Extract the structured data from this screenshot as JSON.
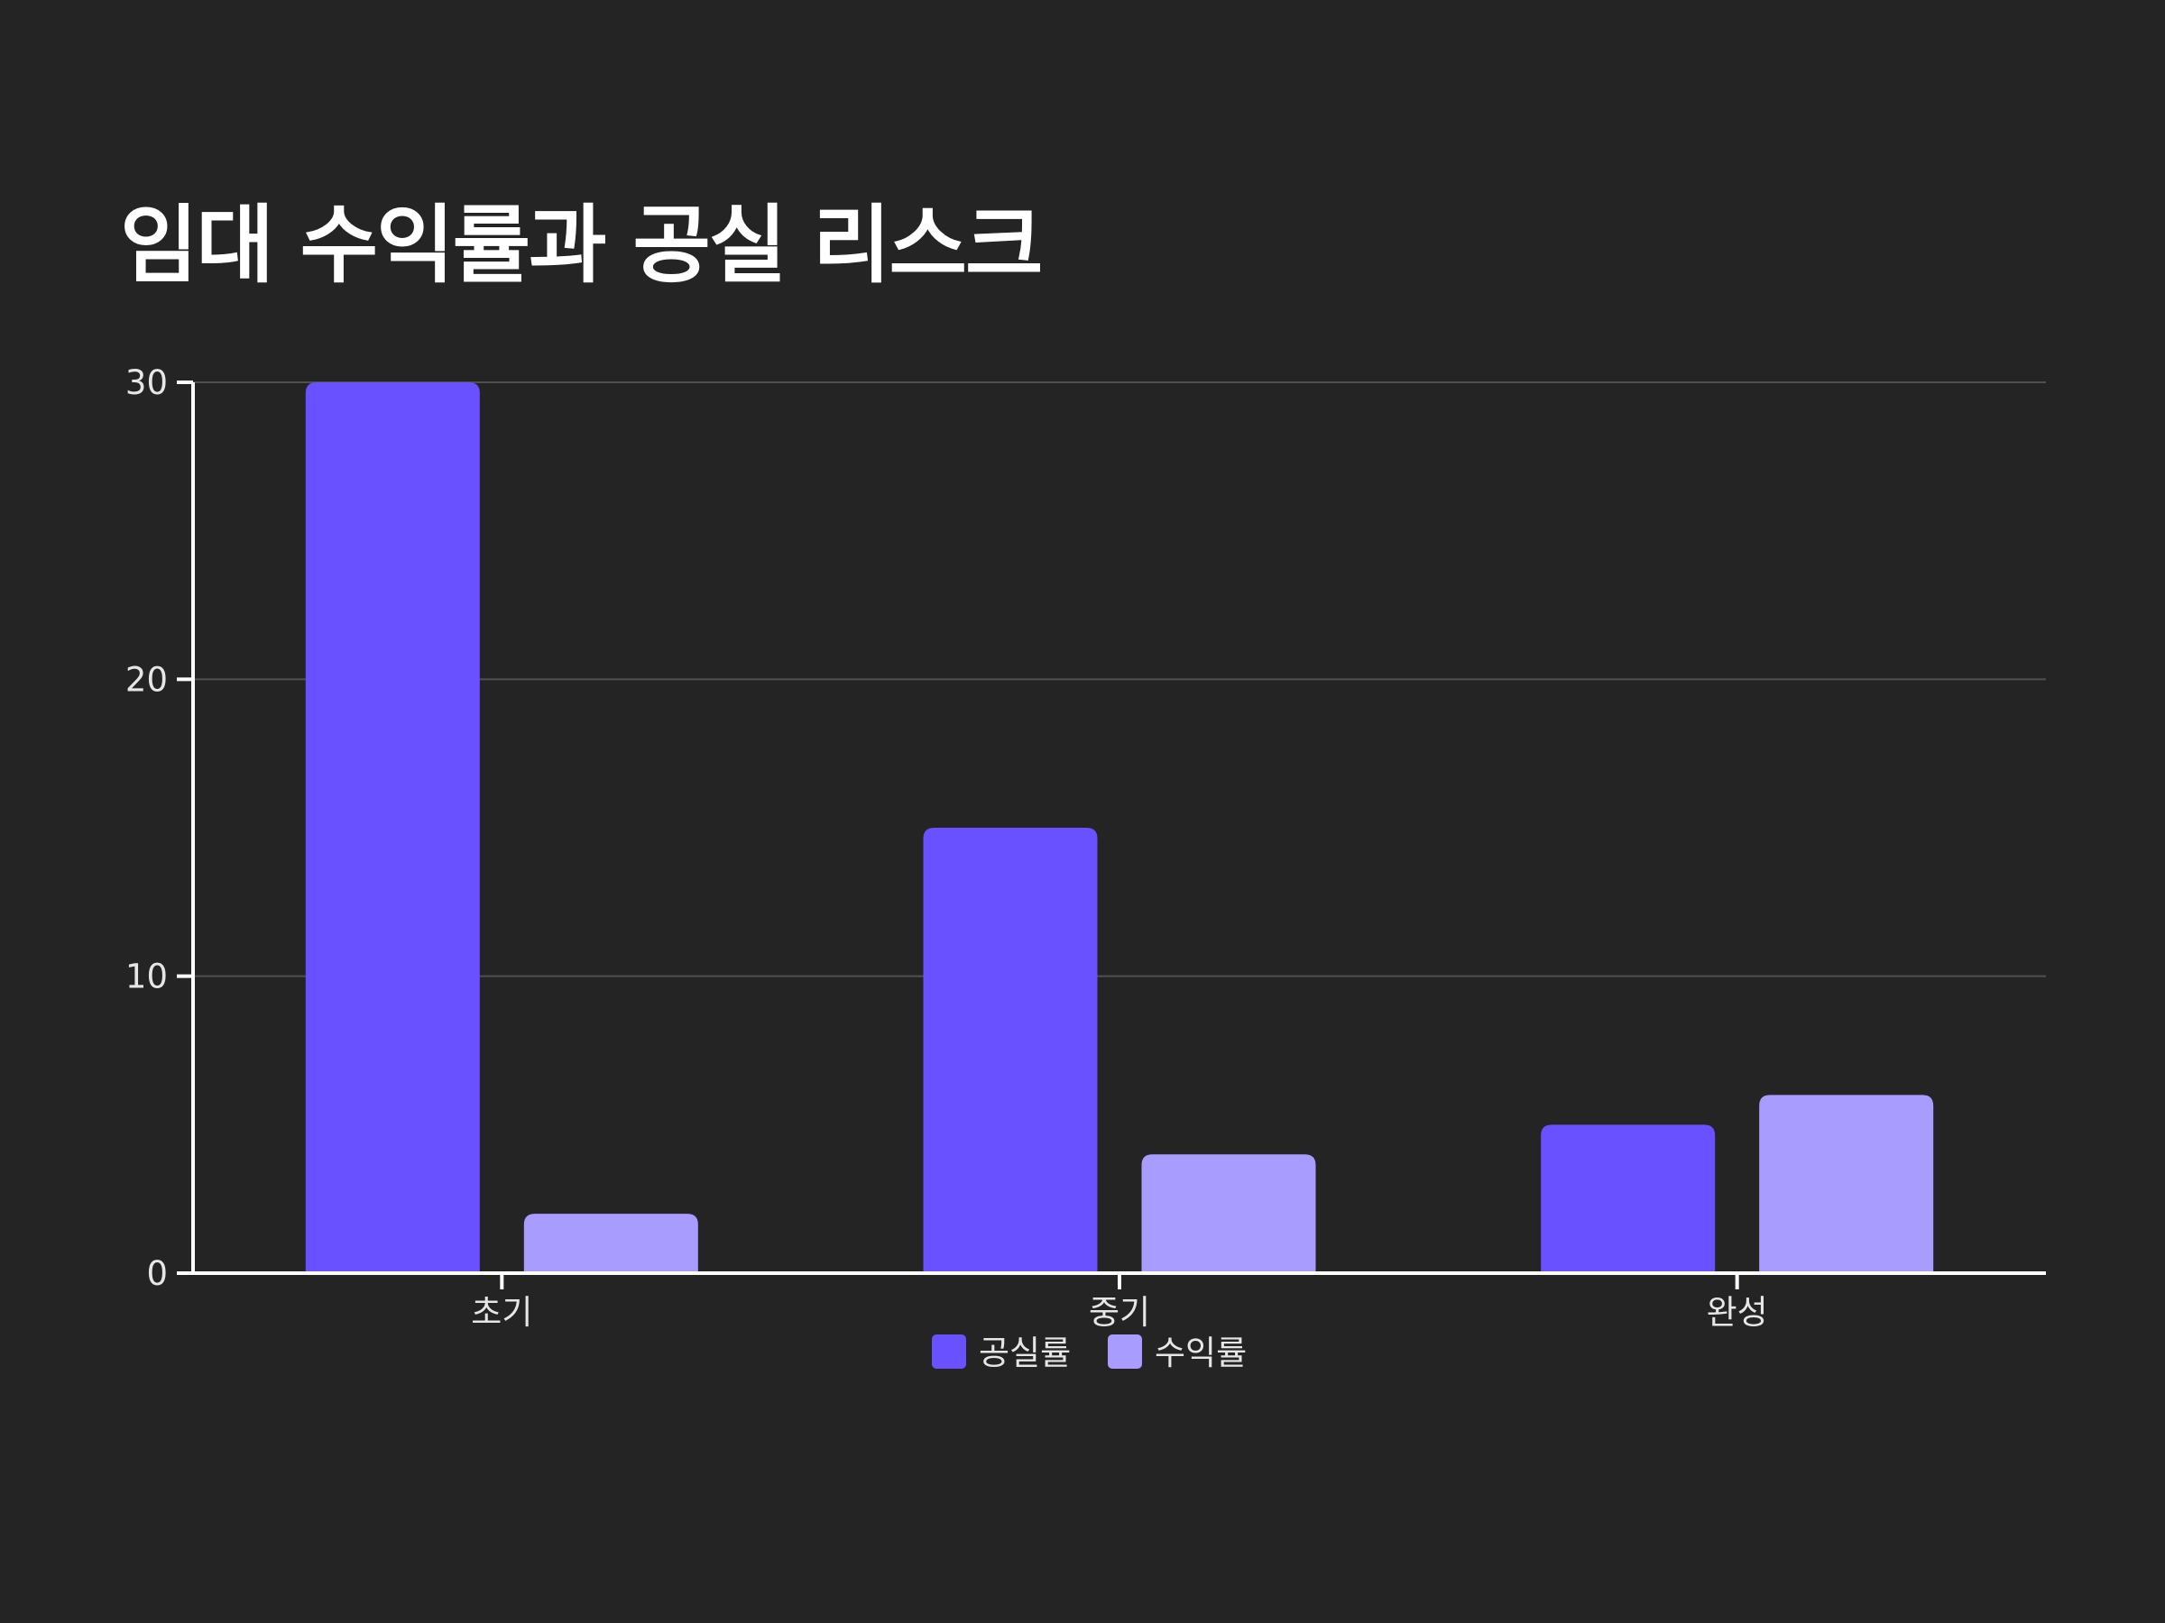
{
  "chart_data": {
    "type": "bar",
    "title": "임대 수익률과 공실 리스크",
    "xlabel": "",
    "ylabel": "",
    "categories": [
      "초기",
      "중기",
      "완성"
    ],
    "series": [
      {
        "name": "공실률",
        "values": [
          30,
          15,
          5
        ],
        "color": "#6a51ff"
      },
      {
        "name": "수익률",
        "values": [
          2,
          4,
          6
        ],
        "color": "#a99cff"
      }
    ],
    "ylim": [
      0,
      30
    ],
    "yticks": [
      0,
      10,
      20,
      30
    ],
    "grid": true,
    "legend": "bottom-center",
    "background": "#252425"
  }
}
